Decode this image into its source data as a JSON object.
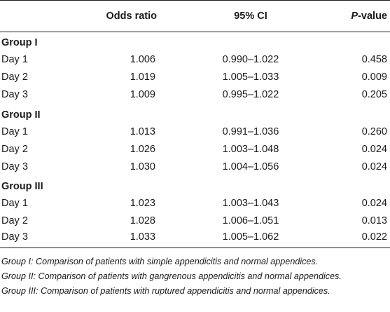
{
  "table": {
    "headers": [
      "",
      "Odds ratio",
      "95% CI",
      "P",
      "-value"
    ],
    "groups": [
      {
        "label": "Group I",
        "rows": [
          {
            "day": "Day 1",
            "or": "1.006",
            "ci": "0.990–1.022",
            "p": "0.458"
          },
          {
            "day": "Day 2",
            "or": "1.019",
            "ci": "1.005–1.033",
            "p": "0.009"
          },
          {
            "day": "Day 3",
            "or": "1.009",
            "ci": "0.995–1.022",
            "p": "0.205"
          }
        ]
      },
      {
        "label": "Group II",
        "rows": [
          {
            "day": "Day 1",
            "or": "1.013",
            "ci": "0.991–1.036",
            "p": "0.260"
          },
          {
            "day": "Day 2",
            "or": "1.026",
            "ci": "1.003–1.048",
            "p": "0.024"
          },
          {
            "day": "Day 3",
            "or": "1.030",
            "ci": "1.004–1.056",
            "p": "0.024"
          }
        ]
      },
      {
        "label": "Group III",
        "rows": [
          {
            "day": "Day 1",
            "or": "1.023",
            "ci": "1.003–1.043",
            "p": "0.024"
          },
          {
            "day": "Day 2",
            "or": "1.028",
            "ci": "1.006–1.051",
            "p": "0.013"
          },
          {
            "day": "Day 3",
            "or": "1.033",
            "ci": "1.005–1.062",
            "p": "0.022"
          }
        ]
      }
    ]
  },
  "footnotes": [
    "Group I: Comparison of patients with simple appendicitis and normal appendices.",
    "Group II: Comparison of patients with gangrenous appendicitis and normal appendices.",
    "Group III: Comparison of patients with ruptured appendicitis and normal appendices."
  ]
}
